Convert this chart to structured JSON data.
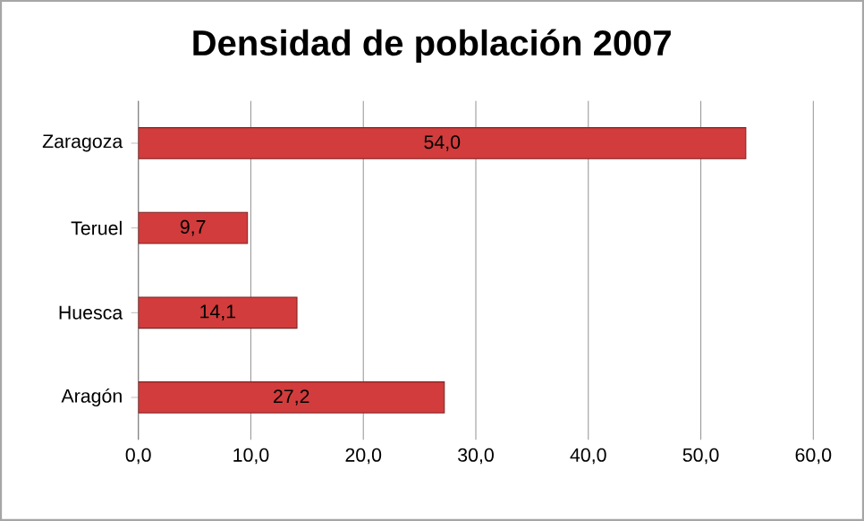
{
  "chart_data": {
    "type": "bar",
    "orientation": "horizontal",
    "title": "Densidad de población 2007",
    "categories": [
      "Zaragoza",
      "Teruel",
      "Huesca",
      "Aragón"
    ],
    "values": [
      54.0,
      9.7,
      14.1,
      27.2
    ],
    "value_labels": [
      "54,0",
      "9,7",
      "14,1",
      "27,2"
    ],
    "color": "#d23c3c",
    "xlim": [
      0,
      60
    ],
    "xticks": [
      {
        "value": 0,
        "label": "0,0"
      },
      {
        "value": 10,
        "label": "10,0"
      },
      {
        "value": 20,
        "label": "20,0"
      },
      {
        "value": 30,
        "label": "30,0"
      },
      {
        "value": 40,
        "label": "40,0"
      },
      {
        "value": 50,
        "label": "50,0"
      },
      {
        "value": 60,
        "label": "60,0"
      }
    ],
    "grid": "x"
  }
}
